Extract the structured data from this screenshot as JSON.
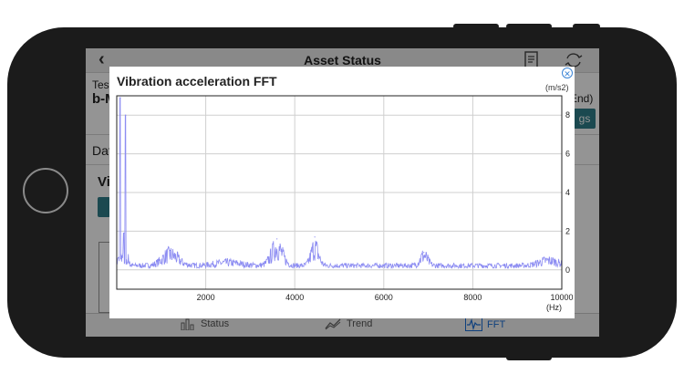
{
  "nav": {
    "title": "Asset Status"
  },
  "background": {
    "label1": "Test",
    "label2": "b-M",
    "label3": "End)",
    "button": "gs",
    "label4": "Dat",
    "label5": "Vi"
  },
  "tabs": [
    {
      "label": "Status",
      "icon": "bar-chart-icon"
    },
    {
      "label": "Trend",
      "icon": "trend-line-icon"
    },
    {
      "label": "FFT",
      "icon": "fft-wave-icon",
      "active": true
    }
  ],
  "modal": {
    "title": "Vibration acceleration FFT",
    "close_icon": "close-icon"
  },
  "chart_data": {
    "type": "line",
    "title": "Vibration acceleration FFT",
    "xlabel": "(Hz)",
    "ylabel": "(m/s2)",
    "xlim": [
      0,
      10000
    ],
    "ylim": [
      -1,
      9
    ],
    "x_ticks": [
      2000,
      4000,
      6000,
      8000,
      10000
    ],
    "y_ticks": [
      0,
      2,
      4,
      6,
      8
    ],
    "grid": true,
    "color": "#8c8cf2",
    "peaks": [
      {
        "x": 80,
        "y": 8.9
      },
      {
        "x": 200,
        "y": 8.0
      },
      {
        "x": 160,
        "y": 1.9
      },
      {
        "x": 1200,
        "y": 1.0
      },
      {
        "x": 3600,
        "y": 1.6
      },
      {
        "x": 4450,
        "y": 1.7
      },
      {
        "x": 6900,
        "y": 0.9
      }
    ]
  }
}
